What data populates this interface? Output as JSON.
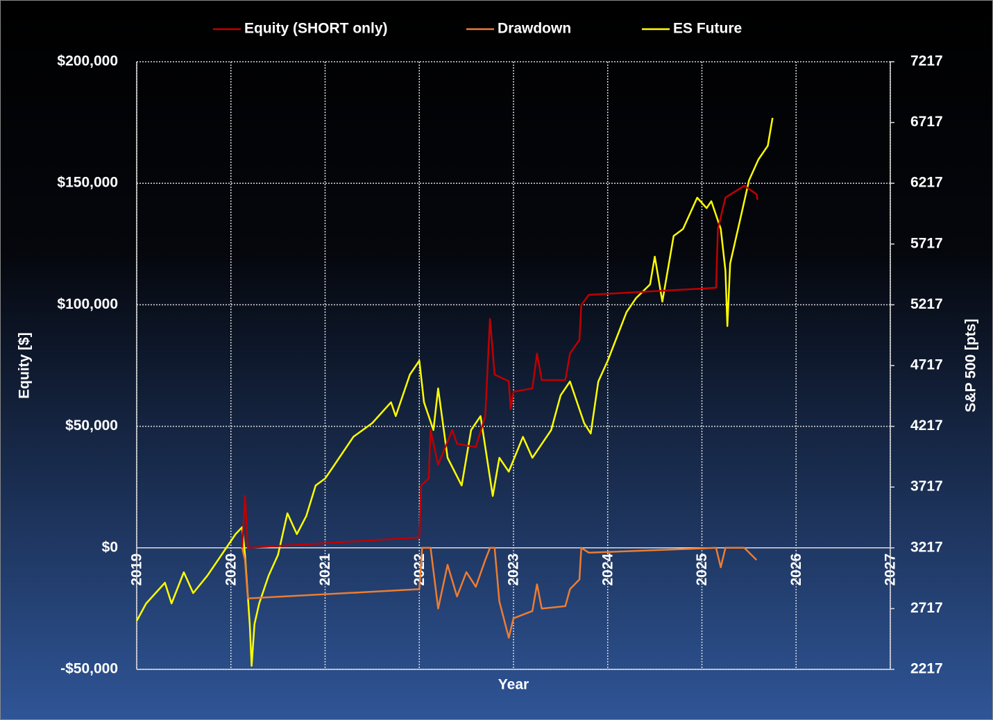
{
  "chart_data": {
    "type": "line",
    "xlabel": "Year",
    "ylabel": "Equity [$]",
    "y2label": "S&P 500 [pts]",
    "xlim": [
      2019,
      2027
    ],
    "xticks": [
      2019,
      2020,
      2021,
      2022,
      2023,
      2024,
      2025,
      2026,
      2027
    ],
    "ylim": [
      -50000,
      200000
    ],
    "yticks": [
      {
        "value": -50000,
        "label": "-$50,000"
      },
      {
        "value": 0,
        "label": "$0"
      },
      {
        "value": 50000,
        "label": "$50,000"
      },
      {
        "value": 100000,
        "label": "$100,000"
      },
      {
        "value": 150000,
        "label": "$150,000"
      },
      {
        "value": 200000,
        "label": "$200,000"
      }
    ],
    "y2lim": [
      2217,
      7217
    ],
    "y2ticks": [
      2217,
      2717,
      3217,
      3717,
      4217,
      4717,
      5217,
      5717,
      6217,
      6717,
      7217
    ],
    "grid": true,
    "legend": "top",
    "series": [
      {
        "name": "Equity (SHORT only)",
        "color": "#c00000",
        "x": [
          2020.12,
          2020.15,
          2020.18,
          2022.0,
          2022.02,
          2022.1,
          2022.12,
          2022.2,
          2022.35,
          2022.4,
          2022.6,
          2022.7,
          2022.75,
          2022.8,
          2022.95,
          2022.97,
          2023.0,
          2023.2,
          2023.25,
          2023.3,
          2023.55,
          2023.6,
          2023.7,
          2023.72,
          2023.8,
          2025.15,
          2025.17,
          2025.25,
          2025.45,
          2025.58,
          2025.59
        ],
        "values": [
          0,
          21400,
          0,
          4280,
          25700,
          28500,
          48500,
          34200,
          48500,
          42800,
          41400,
          54200,
          94200,
          71300,
          68500,
          57100,
          64200,
          65600,
          79900,
          69000,
          69000,
          79900,
          85600,
          99900,
          104100,
          107000,
          131300,
          144100,
          149000,
          145500,
          143200
        ]
      },
      {
        "name": "Drawdown",
        "color": "#ed7d31",
        "x": [
          2020.12,
          2020.15,
          2020.18,
          2022.0,
          2022.03,
          2022.12,
          2022.2,
          2022.3,
          2022.4,
          2022.5,
          2022.6,
          2022.7,
          2022.75,
          2022.8,
          2022.85,
          2022.95,
          2023.0,
          2023.2,
          2023.25,
          2023.3,
          2023.55,
          2023.6,
          2023.7,
          2023.72,
          2023.8,
          2025.15,
          2025.2,
          2025.25,
          2025.45,
          2025.58
        ],
        "values": [
          0,
          -5000,
          -20800,
          -17000,
          0,
          0,
          -25000,
          -7000,
          -20000,
          -10000,
          -16000,
          -5000,
          0,
          0,
          -22000,
          -37000,
          -29000,
          -26000,
          -15000,
          -25000,
          -24000,
          -17000,
          -13000,
          0,
          -2000,
          0,
          -8000,
          0,
          0,
          -5000
        ]
      },
      {
        "name": "ES Future",
        "color": "#ffff00",
        "axis": "y2",
        "x": [
          2019.0,
          2019.1,
          2019.3,
          2019.37,
          2019.5,
          2019.6,
          2019.75,
          2019.9,
          2020.05,
          2020.12,
          2020.15,
          2020.2,
          2020.22,
          2020.25,
          2020.3,
          2020.4,
          2020.5,
          2020.6,
          2020.7,
          2020.8,
          2020.9,
          2021.0,
          2021.1,
          2021.3,
          2021.5,
          2021.7,
          2021.75,
          2021.9,
          2022.0,
          2022.05,
          2022.15,
          2022.2,
          2022.3,
          2022.45,
          2022.55,
          2022.65,
          2022.78,
          2022.85,
          2022.95,
          2023.1,
          2023.2,
          2023.4,
          2023.5,
          2023.6,
          2023.75,
          2023.82,
          2023.9,
          2024.0,
          2024.2,
          2024.3,
          2024.45,
          2024.5,
          2024.58,
          2024.7,
          2024.8,
          2024.95,
          2025.05,
          2025.1,
          2025.2,
          2025.25,
          2025.27,
          2025.3,
          2025.4,
          2025.5,
          2025.6,
          2025.7,
          2025.75
        ],
        "values": [
          2616,
          2759,
          2930,
          2759,
          3016,
          2845,
          2988,
          3159,
          3330,
          3387,
          3159,
          2588,
          2246,
          2588,
          2759,
          2988,
          3159,
          3501,
          3330,
          3478,
          3730,
          3787,
          3901,
          4130,
          4243,
          4415,
          4301,
          4643,
          4757,
          4415,
          4186,
          4529,
          3958,
          3730,
          4186,
          4301,
          3644,
          3958,
          3844,
          4130,
          3958,
          4186,
          4472,
          4586,
          4243,
          4158,
          4586,
          4757,
          5157,
          5271,
          5385,
          5613,
          5243,
          5784,
          5841,
          6098,
          6012,
          6069,
          5841,
          5499,
          5042,
          5556,
          5898,
          6241,
          6412,
          6526,
          6755
        ]
      }
    ]
  }
}
